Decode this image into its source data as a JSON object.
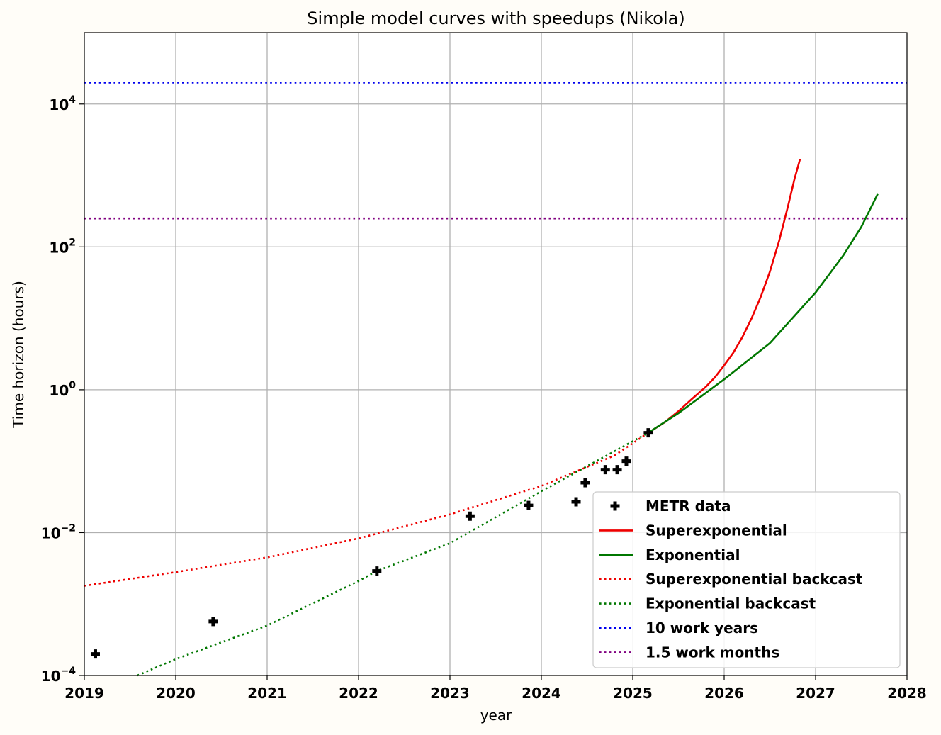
{
  "chart_data": {
    "type": "line",
    "title": "Simple model curves with speedups (Nikola)",
    "xlabel": "year",
    "ylabel": "Time horizon (hours)",
    "xlim": [
      2019,
      2028
    ],
    "ylim": [
      0.0001,
      100000
    ],
    "yscale": "log",
    "grid": true,
    "legend_position": "bottom-right",
    "x_ticks": [
      "2019",
      "2020",
      "2021",
      "2022",
      "2023",
      "2024",
      "2025",
      "2026",
      "2027",
      "2028"
    ],
    "y_ticks": [
      {
        "base": "10",
        "exp": "−4",
        "value": 0.0001
      },
      {
        "base": "10",
        "exp": "−2",
        "value": 0.01
      },
      {
        "base": "10",
        "exp": "0",
        "value": 1
      },
      {
        "base": "10",
        "exp": "2",
        "value": 100
      },
      {
        "base": "10",
        "exp": "4",
        "value": 10000
      }
    ],
    "series": [
      {
        "name": "METR data",
        "kind": "scatter",
        "color": "#000000",
        "points": [
          [
            2019.12,
            0.0002
          ],
          [
            2020.41,
            0.00057
          ],
          [
            2022.2,
            0.0029
          ],
          [
            2023.22,
            0.017
          ],
          [
            2023.86,
            0.024
          ],
          [
            2024.38,
            0.027
          ],
          [
            2024.48,
            0.05
          ],
          [
            2024.7,
            0.076
          ],
          [
            2024.83,
            0.076
          ],
          [
            2024.93,
            0.1
          ],
          [
            2025.17,
            0.25
          ]
        ]
      },
      {
        "name": "Superexponential",
        "kind": "line",
        "style": "solid",
        "color": "#ee0000",
        "points": [
          [
            2025.17,
            0.25
          ],
          [
            2025.35,
            0.35
          ],
          [
            2025.5,
            0.5
          ],
          [
            2025.65,
            0.75
          ],
          [
            2025.8,
            1.1
          ],
          [
            2025.9,
            1.5
          ],
          [
            2026.0,
            2.2
          ],
          [
            2026.1,
            3.3
          ],
          [
            2026.2,
            5.5
          ],
          [
            2026.3,
            10
          ],
          [
            2026.4,
            20
          ],
          [
            2026.5,
            45
          ],
          [
            2026.6,
            120
          ],
          [
            2026.7,
            380
          ],
          [
            2026.77,
            900
          ],
          [
            2026.83,
            1700
          ]
        ]
      },
      {
        "name": "Exponential",
        "kind": "line",
        "style": "solid",
        "color": "#007700",
        "points": [
          [
            2025.17,
            0.25
          ],
          [
            2025.5,
            0.47
          ],
          [
            2026.0,
            1.4
          ],
          [
            2026.5,
            4.5
          ],
          [
            2027.0,
            23
          ],
          [
            2027.3,
            75
          ],
          [
            2027.5,
            190
          ],
          [
            2027.68,
            550
          ]
        ]
      },
      {
        "name": "Superexponential backcast",
        "kind": "line",
        "style": "dotted",
        "color": "#ee0000",
        "points": [
          [
            2019.0,
            0.0018
          ],
          [
            2020.0,
            0.0028
          ],
          [
            2021.0,
            0.0045
          ],
          [
            2022.0,
            0.0083
          ],
          [
            2023.0,
            0.018
          ],
          [
            2024.0,
            0.045
          ],
          [
            2024.8,
            0.12
          ],
          [
            2025.17,
            0.25
          ]
        ]
      },
      {
        "name": "Exponential backcast",
        "kind": "line",
        "style": "dotted",
        "color": "#007700",
        "points": [
          [
            2019.58,
            0.0001
          ],
          [
            2020.0,
            0.00017
          ],
          [
            2021.0,
            0.0005
          ],
          [
            2022.0,
            0.0021
          ],
          [
            2022.2,
            0.0029
          ],
          [
            2023.0,
            0.0071
          ],
          [
            2024.0,
            0.038
          ],
          [
            2025.17,
            0.25
          ]
        ]
      },
      {
        "name": "10 work years",
        "kind": "hline",
        "style": "dotted",
        "color": "#0000ee",
        "y": 20000
      },
      {
        "name": "1.5 work months",
        "kind": "hline",
        "style": "dotted",
        "color": "#800080",
        "y": 250
      }
    ]
  }
}
